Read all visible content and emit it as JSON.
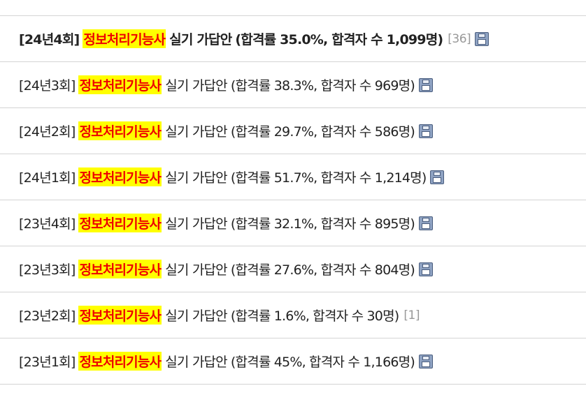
{
  "posts": [
    {
      "round": "[24년4회]",
      "highlight": "정보처리기능사",
      "title": "실기 가답안",
      "stats": "(합격률 35.0%, 합격자 수 1,099명)",
      "comment_count": "[36]",
      "has_file": true,
      "bold": true
    },
    {
      "round": "[24년3회]",
      "highlight": "정보처리기능사",
      "title": "실기 가답안",
      "stats": "(합격률 38.3%, 합격자 수 969명)",
      "comment_count": "",
      "has_file": true,
      "bold": false
    },
    {
      "round": "[24년2회]",
      "highlight": "정보처리기능사",
      "title": "실기 가답안",
      "stats": "(합격률 29.7%, 합격자 수 586명)",
      "comment_count": "",
      "has_file": true,
      "bold": false
    },
    {
      "round": "[24년1회]",
      "highlight": "정보처리기능사",
      "title": "실기 가답안",
      "stats": "(합격률 51.7%, 합격자 수 1,214명)",
      "comment_count": "",
      "has_file": true,
      "bold": false
    },
    {
      "round": "[23년4회]",
      "highlight": "정보처리기능사",
      "title": "실기 가답안",
      "stats": "(합격률 32.1%, 합격자 수 895명)",
      "comment_count": "",
      "has_file": true,
      "bold": false
    },
    {
      "round": "[23년3회]",
      "highlight": "정보처리기능사",
      "title": "실기 가답안",
      "stats": "(합격률 27.6%, 합격자 수 804명)",
      "comment_count": "",
      "has_file": true,
      "bold": false
    },
    {
      "round": "[23년2회]",
      "highlight": "정보처리기능사",
      "title": "실기 가답안",
      "stats": "(합격률 1.6%, 합격자 수 30명)",
      "comment_count": "[1]",
      "has_file": false,
      "bold": false
    },
    {
      "round": "[23년1회]",
      "highlight": "정보처리기능사",
      "title": "실기 가답안",
      "stats": "(합격률 45%, 합격자 수 1,166명)",
      "comment_count": "",
      "has_file": true,
      "bold": false
    }
  ],
  "icons": {
    "file": "floppy-disk-icon"
  },
  "colors": {
    "highlight_bg": "#ffff00",
    "highlight_text": "#ee0000",
    "count_text": "#999999",
    "divider": "#d4d4d4"
  }
}
